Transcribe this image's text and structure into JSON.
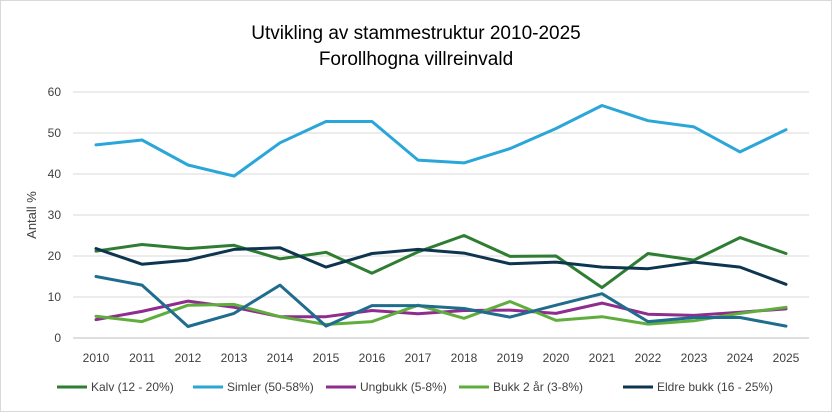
{
  "chart_data": {
    "type": "line",
    "title_line1": "Utvikling av stammestruktur 2010-2025",
    "title_line2": "Forollhogna villreinvald",
    "ylabel": "Antall %",
    "xlabel": "",
    "ylim": [
      0,
      60
    ],
    "yticks": [
      0,
      10,
      20,
      30,
      40,
      50,
      60
    ],
    "grid": true,
    "legend_position": "bottom",
    "x": [
      "2010",
      "2011",
      "2012",
      "2013",
      "2014",
      "2015",
      "2016",
      "2017",
      "2018",
      "2019",
      "2020",
      "2021",
      "2022",
      "2023",
      "2024",
      "2025"
    ],
    "series": [
      {
        "name": "Kalv (12 - 20%)",
        "color": "#2e7d32",
        "values": [
          21.2,
          22.8,
          21.8,
          22.6,
          19.3,
          20.9,
          15.8,
          21.0,
          25.0,
          19.9,
          20.0,
          12.3,
          20.6,
          19.0,
          24.5,
          20.6
        ]
      },
      {
        "name": "Simler (50-58%)",
        "color": "#2aa6d9",
        "values": [
          47.1,
          48.3,
          42.2,
          39.5,
          47.6,
          52.8,
          52.8,
          43.4,
          42.7,
          46.2,
          51.1,
          56.7,
          53.0,
          51.5,
          45.4,
          50.8
        ]
      },
      {
        "name": "Ungbukk (5-8%)",
        "color": "#8e2d8e",
        "values": [
          4.5,
          6.5,
          9.0,
          7.5,
          5.2,
          5.2,
          6.7,
          5.9,
          6.7,
          6.8,
          6.0,
          8.5,
          5.8,
          5.5,
          6.3,
          7.1
        ]
      },
      {
        "name": "Bukk 2 år (3-8%)",
        "color": "#5fae3d",
        "values": [
          5.3,
          4.0,
          8.0,
          8.2,
          5.2,
          3.3,
          4.0,
          8.0,
          4.8,
          8.9,
          4.3,
          5.2,
          3.4,
          4.2,
          6.0,
          7.5
        ]
      },
      {
        "name": "Eldre bukk (16 - 25%)",
        "color": "#0e3550",
        "values": [
          21.8,
          18.0,
          19.0,
          21.6,
          22.0,
          17.3,
          20.6,
          21.6,
          20.7,
          18.1,
          18.5,
          17.3,
          16.9,
          18.5,
          17.3,
          13.1
        ]
      },
      {
        "name": "",
        "color": "#1f6c8e",
        "legend": false,
        "values": [
          15.0,
          12.9,
          2.8,
          6.0,
          12.9,
          2.9,
          7.9,
          7.9,
          7.2,
          5.1,
          8.0,
          10.8,
          4.0,
          5.0,
          5.0,
          2.9
        ]
      }
    ]
  }
}
